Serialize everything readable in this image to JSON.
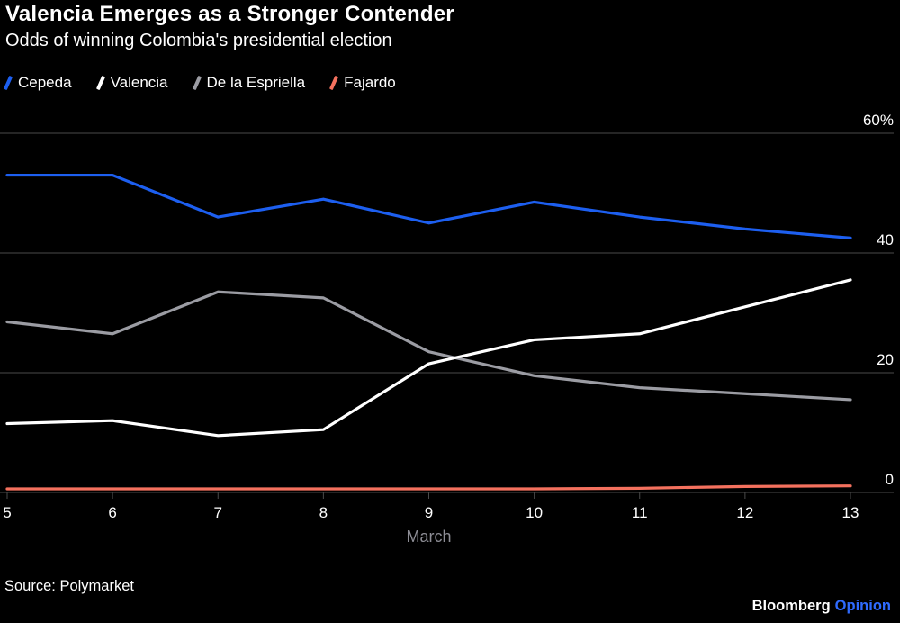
{
  "header": {
    "title": "Valencia Emerges as a Stronger Contender",
    "subtitle": "Odds of winning Colombia's presidential election"
  },
  "legend": [
    {
      "label": "Cepeda",
      "color": "#1d5ff0"
    },
    {
      "label": "Valencia",
      "color": "#ffffff"
    },
    {
      "label": "De la Espriella",
      "color": "#9b9ca3"
    },
    {
      "label": "Fajardo",
      "color": "#f4715e"
    }
  ],
  "chart_data": {
    "type": "line",
    "x": [
      5,
      6,
      7,
      8,
      9,
      10,
      11,
      12,
      13
    ],
    "series": [
      {
        "name": "Cepeda",
        "color": "#1d5ff0",
        "values": [
          53,
          53,
          46,
          49,
          45,
          48.5,
          46,
          44,
          42.5
        ]
      },
      {
        "name": "Valencia",
        "color": "#ffffff",
        "values": [
          11.5,
          12,
          9.5,
          10.5,
          21.5,
          25.5,
          26.5,
          31,
          35.5
        ]
      },
      {
        "name": "De la Espriella",
        "color": "#9b9ca3",
        "values": [
          28.5,
          26.5,
          33.5,
          32.5,
          23.5,
          19.5,
          17.5,
          16.5,
          15.5
        ]
      },
      {
        "name": "Fajardo",
        "color": "#f4715e",
        "values": [
          0.6,
          0.6,
          0.6,
          0.6,
          0.6,
          0.6,
          0.7,
          1.0,
          1.1
        ]
      }
    ],
    "xlabel": "March",
    "ylim": [
      0,
      60
    ],
    "yticks": [
      0,
      20,
      40,
      60
    ],
    "ytick_labels": [
      "0",
      "20",
      "40",
      "60%"
    ],
    "legend_position": "top",
    "grid": "horizontal"
  },
  "colors": {
    "background": "#000000",
    "grid": "#4a4a4a",
    "axis_text": "#ffffff",
    "xlabel_text": "#8d8d95",
    "opinion_blue": "#2f6bff"
  },
  "footer": {
    "source": "Source: Polymarket",
    "brand": "Bloomberg",
    "brand_suffix": "Opinion"
  }
}
